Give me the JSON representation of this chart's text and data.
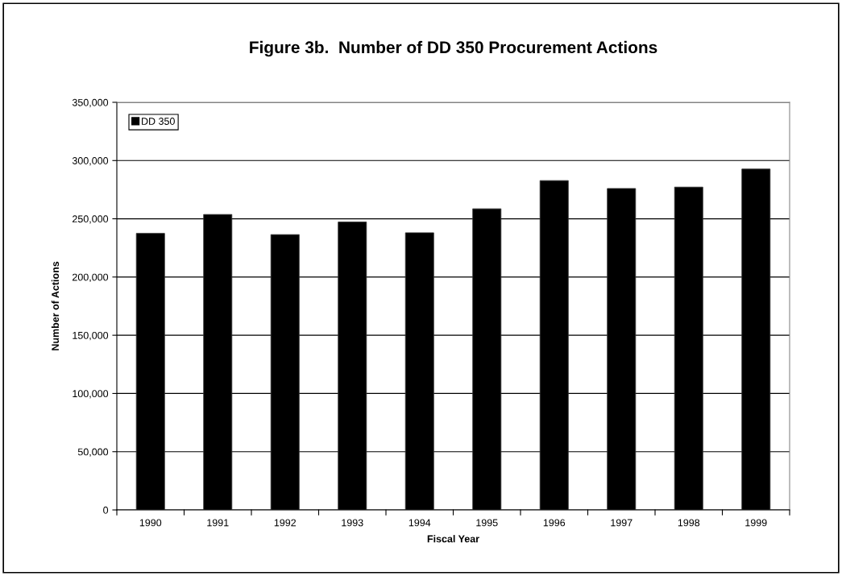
{
  "chart_data": {
    "type": "bar",
    "title": "Figure 3b.  Number of DD 350 Procurement Actions",
    "xlabel": "Fiscal Year",
    "ylabel": "Number of Actions",
    "categories": [
      "1990",
      "1991",
      "1992",
      "1993",
      "1994",
      "1995",
      "1996",
      "1997",
      "1998",
      "1999"
    ],
    "series": [
      {
        "name": "DD 350",
        "color": "#000000",
        "values": [
          237500,
          253700,
          236400,
          247200,
          238000,
          258600,
          282800,
          276000,
          277200,
          292700
        ]
      }
    ],
    "ylim": [
      0,
      350000
    ],
    "yticks": [
      {
        "value": 0,
        "label": "0"
      },
      {
        "value": 50000,
        "label": "50,000"
      },
      {
        "value": 100000,
        "label": "100,000"
      },
      {
        "value": 150000,
        "label": "150,000"
      },
      {
        "value": 200000,
        "label": "200,000"
      },
      {
        "value": 250000,
        "label": "250,000"
      },
      {
        "value": 300000,
        "label": "300,000"
      },
      {
        "value": 350000,
        "label": "350,000"
      }
    ],
    "grid": "y",
    "legend": "top left"
  }
}
